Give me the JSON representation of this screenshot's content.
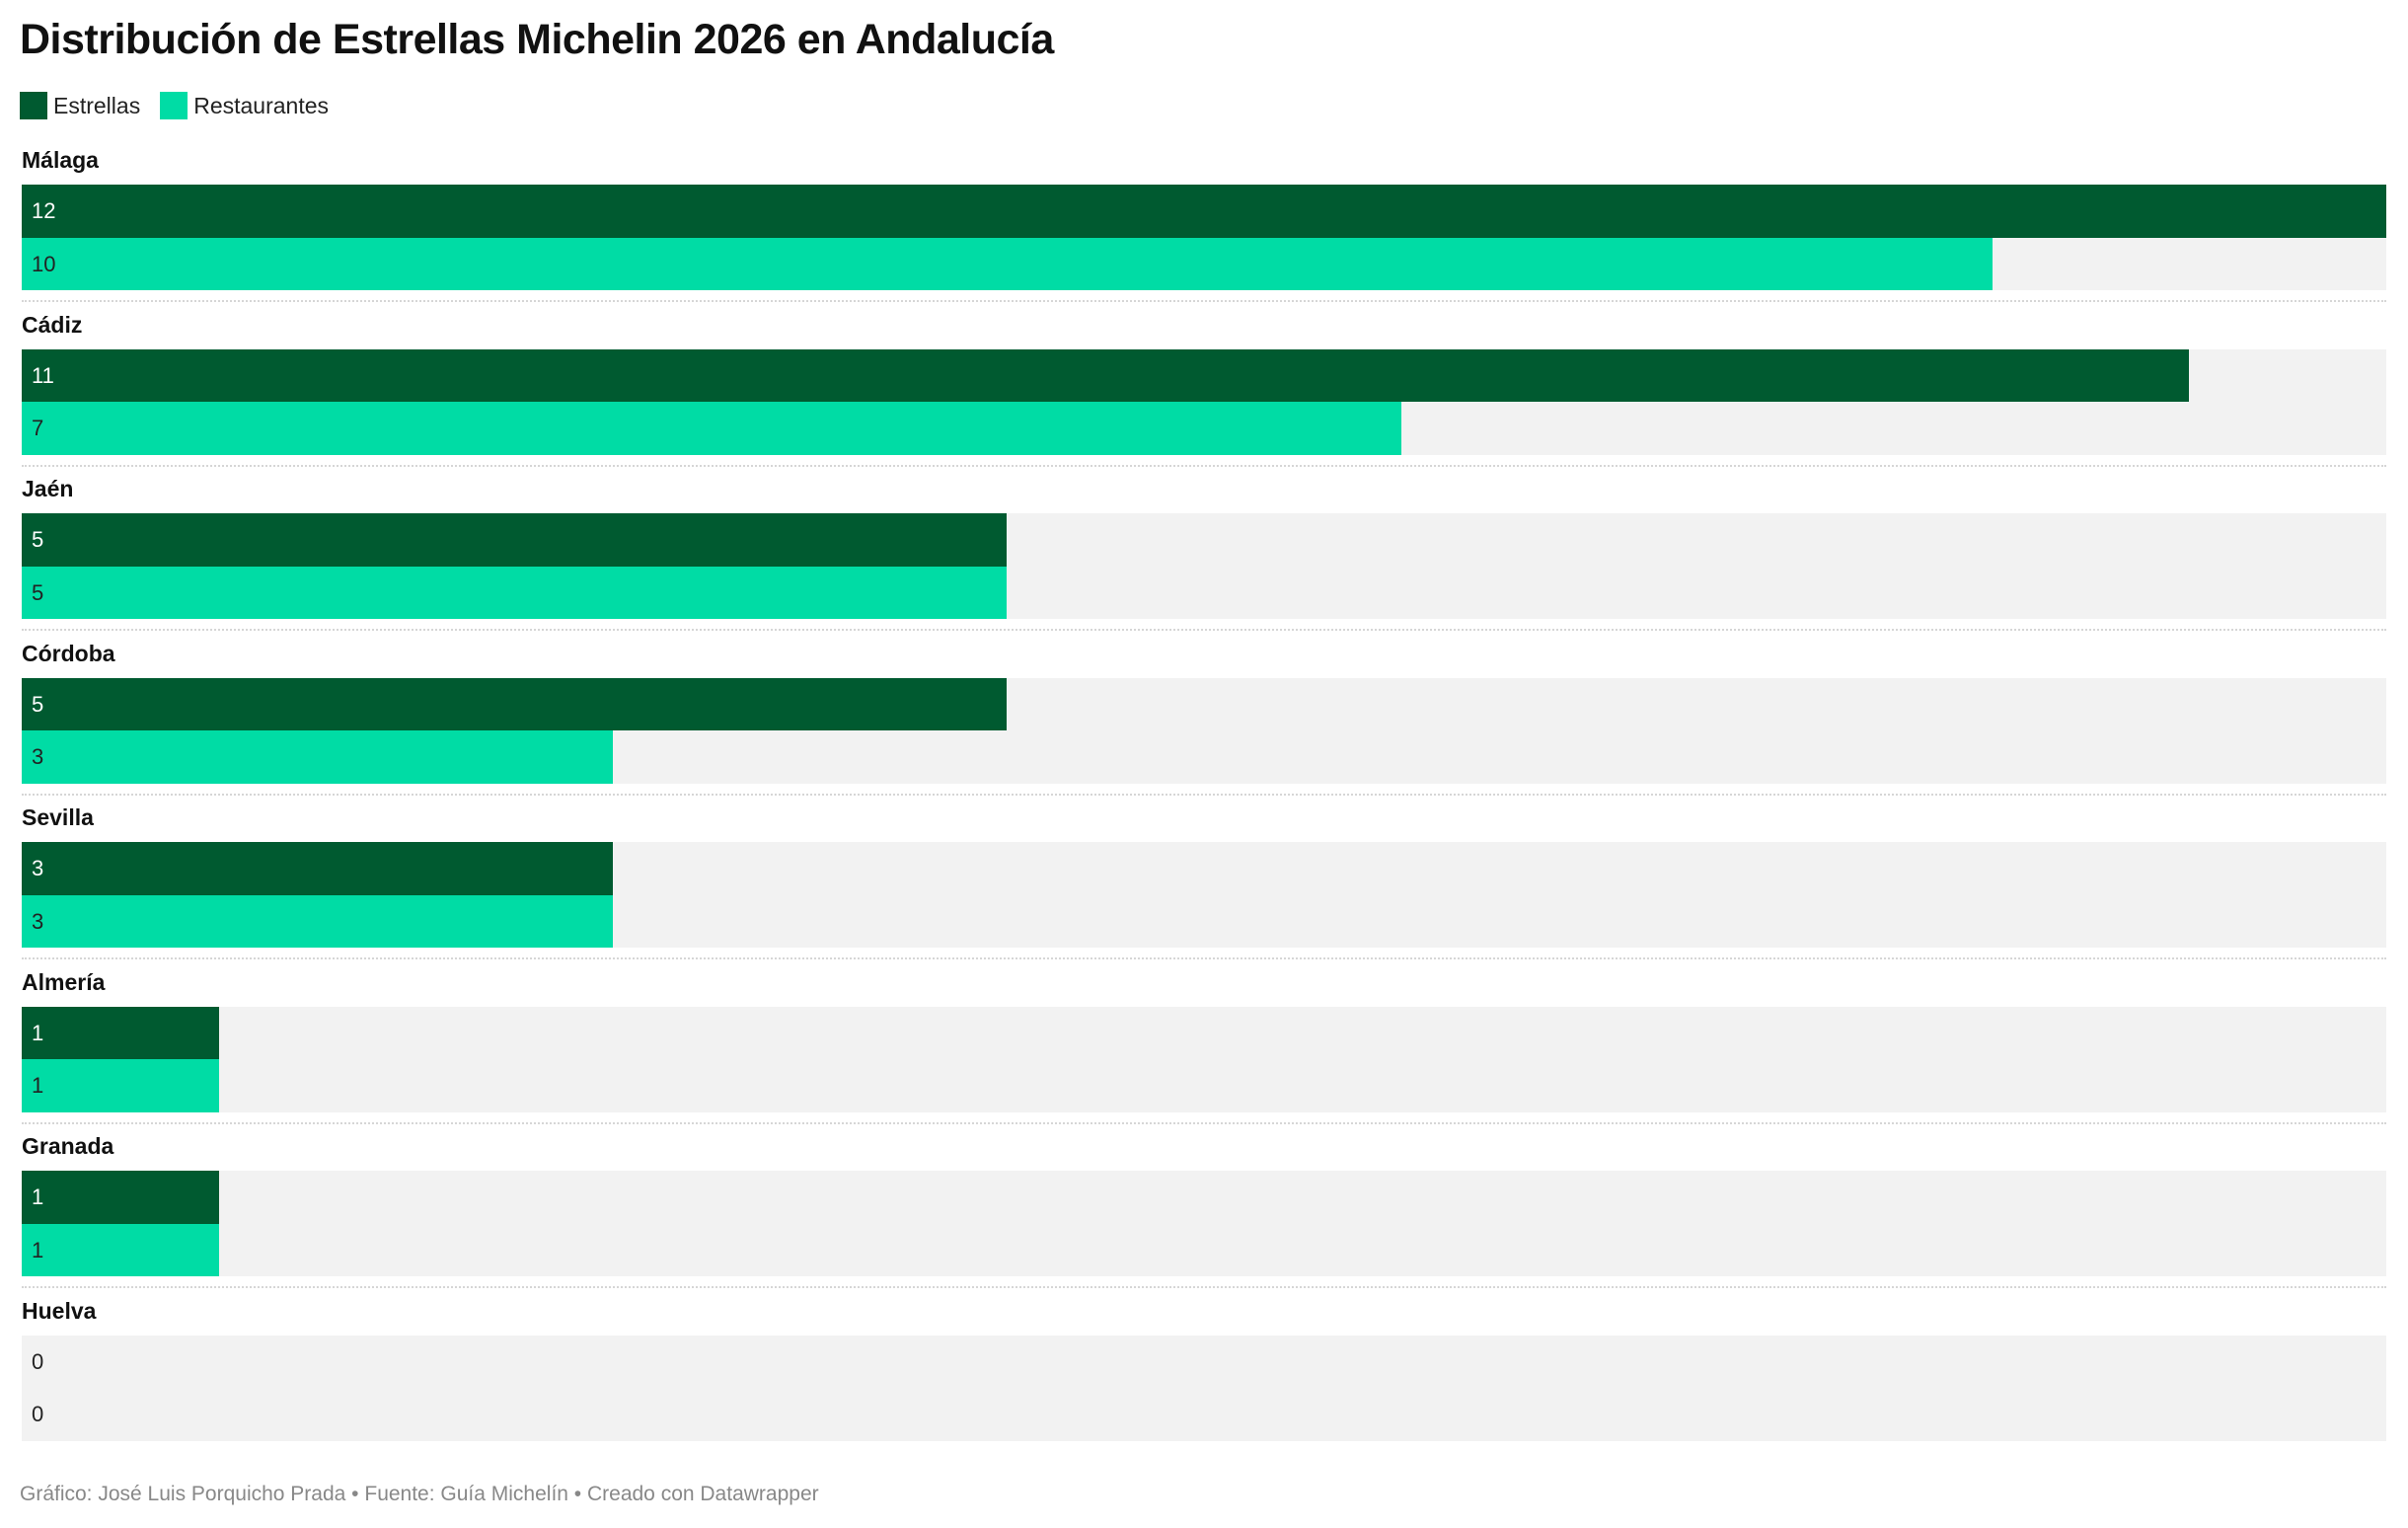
{
  "chart_data": {
    "type": "bar",
    "orientation": "horizontal",
    "title": "Distribución de Estrellas Michelin 2026 en Andalucía",
    "categories": [
      "Málaga",
      "Cádiz",
      "Jaén",
      "Córdoba",
      "Sevilla",
      "Almería",
      "Granada",
      "Huelva"
    ],
    "series": [
      {
        "name": "Estrellas",
        "color": "#005a30",
        "values": [
          12,
          11,
          5,
          5,
          3,
          1,
          1,
          0
        ]
      },
      {
        "name": "Restaurantes",
        "color": "#00dca5",
        "values": [
          10,
          7,
          5,
          3,
          3,
          1,
          1,
          0
        ]
      }
    ],
    "xlim": [
      0,
      12
    ],
    "legend": "top-left",
    "grid": false,
    "track_color": "#f2f2f2",
    "footer": "Gráfico: José Luis Porquicho Prada • Fuente: Guía Michelín • Creado con Datawrapper"
  }
}
